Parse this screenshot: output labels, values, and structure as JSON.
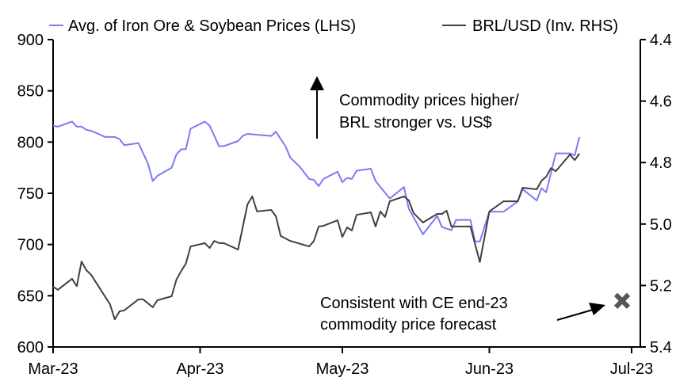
{
  "chart_data": {
    "type": "line",
    "title": "",
    "x_unit": "days since 1 Mar 2023",
    "xlim": [
      0,
      122
    ],
    "x_ticks": [
      {
        "label": "Mar-23",
        "day": 0
      },
      {
        "label": "Apr-23",
        "day": 31
      },
      {
        "label": "May-23",
        "day": 61
      },
      {
        "label": "Jun-23",
        "day": 92
      },
      {
        "label": "Jul-23",
        "day": 122
      }
    ],
    "y_left": {
      "lim": [
        600,
        900
      ],
      "ticks": [
        "600",
        "650",
        "700",
        "750",
        "800",
        "850",
        "900"
      ]
    },
    "y_right": {
      "lim": [
        4.4,
        5.4
      ],
      "inverted": true,
      "ticks": [
        "4.4",
        "4.6",
        "4.8",
        "5.0",
        "5.2",
        "5.4"
      ]
    },
    "grid": false,
    "legend_position": "top",
    "series": [
      {
        "name": "Avg. of Iron Ore & Soybean Prices (LHS)",
        "axis": "left",
        "color": "#7b7bf2",
        "x": [
          0,
          1,
          4,
          5,
          6,
          7,
          8,
          11,
          12,
          13,
          14,
          15,
          18,
          20,
          21,
          22,
          25,
          26,
          27,
          28,
          29,
          32,
          33,
          35,
          36,
          39,
          40,
          41,
          46,
          47,
          49,
          50,
          52,
          54,
          55,
          56,
          57,
          60,
          61,
          62,
          63,
          64,
          67,
          68,
          71,
          74,
          75,
          78,
          81,
          82,
          84,
          85,
          88,
          89,
          90,
          92,
          95,
          98,
          99,
          102,
          103,
          104,
          106,
          109,
          110,
          111
        ],
        "y": [
          816,
          815,
          820,
          815,
          815,
          812,
          811,
          805,
          805,
          805,
          803,
          797,
          799,
          779,
          762,
          767,
          775,
          788,
          793,
          793,
          813,
          820,
          816,
          796,
          796,
          801,
          806,
          808,
          806,
          810,
          796,
          785,
          776,
          764,
          763,
          757,
          764,
          771,
          761,
          765,
          764,
          772,
          774,
          762,
          745,
          756,
          735,
          710,
          728,
          717,
          714,
          724,
          724,
          703,
          703,
          732,
          732,
          742,
          754,
          743,
          755,
          751,
          789,
          789,
          787,
          805
        ]
      },
      {
        "name": "BRL/USD (Inv. RHS)",
        "axis": "right",
        "color": "#404040",
        "x": [
          0,
          1,
          4,
          5,
          6,
          7,
          8,
          12,
          13,
          14,
          15,
          18,
          19,
          21,
          22,
          25,
          26,
          27,
          28,
          29,
          32,
          33,
          34,
          35,
          36,
          39,
          41,
          42,
          43,
          46,
          47,
          48,
          50,
          54,
          55,
          56,
          57,
          60,
          61,
          62,
          63,
          64,
          67,
          68,
          69,
          70,
          71,
          74,
          75,
          76,
          78,
          81,
          82,
          83,
          84,
          88,
          90,
          92,
          95,
          98,
          99,
          102,
          103,
          104,
          105,
          106,
          109,
          110,
          111
        ],
        "y": [
          5.204,
          5.214,
          5.178,
          5.202,
          5.122,
          5.15,
          5.165,
          5.261,
          5.31,
          5.284,
          5.281,
          5.245,
          5.245,
          5.271,
          5.248,
          5.235,
          5.181,
          5.153,
          5.129,
          5.073,
          5.062,
          5.078,
          5.055,
          5.062,
          5.062,
          5.083,
          4.936,
          4.91,
          4.959,
          4.954,
          4.975,
          5.039,
          5.055,
          5.073,
          5.055,
          5.008,
          5.006,
          4.988,
          5.042,
          5.011,
          5.021,
          4.97,
          4.962,
          5.008,
          4.959,
          4.977,
          4.926,
          4.91,
          4.923,
          4.964,
          4.995,
          4.967,
          4.967,
          4.957,
          5.008,
          5.008,
          5.124,
          4.959,
          4.926,
          4.926,
          4.882,
          4.887,
          4.859,
          4.846,
          4.818,
          4.828,
          4.774,
          4.792,
          4.771
        ]
      }
    ],
    "forecast_marker": {
      "day": 120,
      "value": 645,
      "axis": "left",
      "color": "#555555",
      "symbol": "x"
    },
    "annotations": {
      "up_arrow_text_1": "Commodity prices higher/",
      "up_arrow_text_2": "BRL stronger vs. US$",
      "forecast_text_1": "Consistent with CE end-23",
      "forecast_text_2": "commodity price forecast"
    }
  }
}
